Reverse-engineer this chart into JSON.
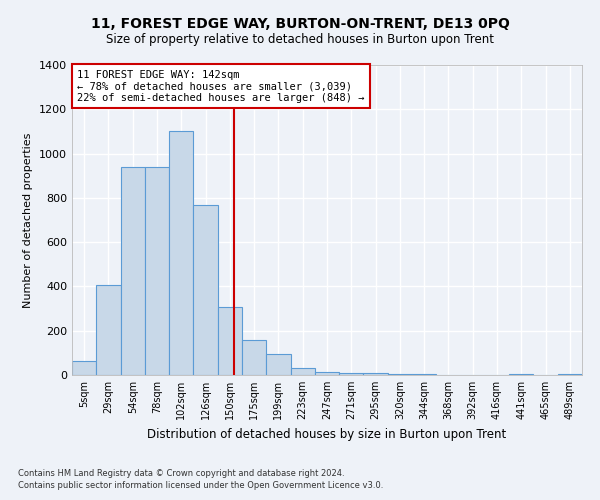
{
  "title1": "11, FOREST EDGE WAY, BURTON-ON-TRENT, DE13 0PQ",
  "title2": "Size of property relative to detached houses in Burton upon Trent",
  "xlabel": "Distribution of detached houses by size in Burton upon Trent",
  "ylabel": "Number of detached properties",
  "categories": [
    "5sqm",
    "29sqm",
    "54sqm",
    "78sqm",
    "102sqm",
    "126sqm",
    "150sqm",
    "175sqm",
    "199sqm",
    "223sqm",
    "247sqm",
    "271sqm",
    "295sqm",
    "320sqm",
    "344sqm",
    "368sqm",
    "392sqm",
    "416sqm",
    "441sqm",
    "465sqm",
    "489sqm"
  ],
  "values": [
    65,
    405,
    940,
    940,
    1100,
    770,
    305,
    160,
    95,
    30,
    15,
    10,
    10,
    5,
    5,
    0,
    0,
    0,
    5,
    0,
    5
  ],
  "bar_color": "#c8d8e8",
  "bar_edge_color": "#5b9bd5",
  "property_label": "11 FOREST EDGE WAY: 142sqm",
  "annotation_line1": "← 78% of detached houses are smaller (3,039)",
  "annotation_line2": "22% of semi-detached houses are larger (848) →",
  "vline_color": "#cc0000",
  "footnote1": "Contains HM Land Registry data © Crown copyright and database right 2024.",
  "footnote2": "Contains public sector information licensed under the Open Government Licence v3.0.",
  "ylim": [
    0,
    1400
  ],
  "yticks": [
    0,
    200,
    400,
    600,
    800,
    1000,
    1200,
    1400
  ],
  "bg_color": "#eef2f8",
  "grid_color": "#ffffff",
  "annotation_box_color": "#ffffff",
  "annotation_box_edge": "#cc0000"
}
